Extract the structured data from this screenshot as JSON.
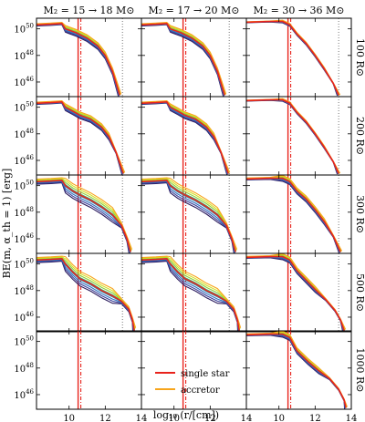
{
  "figure": {
    "ylabel": "BE(m, α_th = 1) [erg]",
    "xlabel": "log₁₀ (r/[cm])"
  },
  "chart_data": {
    "type": "line",
    "layout": {
      "rows": 5,
      "cols": 3
    },
    "column_titles": [
      "M₂ = 15 → 18 M⊙",
      "M₂ = 17 → 20 M⊙",
      "M₂ = 30 → 36 M⊙"
    ],
    "row_labels": [
      "100 R⊙",
      "200 R⊙",
      "300 R⊙",
      "500 R⊙",
      "1000 R⊙"
    ],
    "x_axis": {
      "scale": "log10 r",
      "range": [
        8.2,
        14
      ],
      "ticks": [
        10,
        12,
        14
      ],
      "tick_labels": [
        "10",
        "12",
        "14"
      ]
    },
    "y_axis": {
      "scale": "log",
      "range_exponent": [
        44.9,
        50.8
      ],
      "ticks_exponent": [
        46,
        48,
        50
      ],
      "tick_labels": [
        "10^46",
        "10^48",
        "10^50"
      ]
    },
    "legend": {
      "location": "row 5, column 2",
      "entries": [
        {
          "label": "single star",
          "color": "#e8231c"
        },
        {
          "label": "accretor",
          "color": "#f7a51c"
        }
      ]
    },
    "colors": {
      "single_star": "#e8231c",
      "accretor": "#f7a51c",
      "vertical_lines": "#e8231c",
      "ensemble_palette": [
        "#2b1b5e",
        "#3b3f9a",
        "#2f6fbf",
        "#2a9ab5",
        "#3dba82",
        "#8fcf3c",
        "#d7e021",
        "#f7a51c"
      ]
    },
    "annotations": {
      "solid_vline_x": 10.5,
      "dash_dot_vline_x": 10.65,
      "dotted_vline_x_by_column": [
        12.95,
        13.05,
        13.3
      ]
    },
    "panels": [
      {
        "row": 0,
        "col": 0,
        "series": [
          {
            "name": "single star",
            "x": [
              8.2,
              9.0,
              9.6,
              9.8,
              10.0,
              10.4,
              11.0,
              11.6,
              12.0,
              12.4,
              12.8
            ],
            "y": [
              50.3,
              50.35,
              50.4,
              50.0,
              49.9,
              49.7,
              49.3,
              48.7,
              48.0,
              46.8,
              45.0
            ]
          }
        ]
      },
      {
        "row": 0,
        "col": 1,
        "series": [
          {
            "name": "single star",
            "x": [
              8.2,
              9.0,
              9.6,
              9.8,
              10.0,
              10.4,
              11.0,
              11.6,
              12.0,
              12.4,
              12.8
            ],
            "y": [
              50.3,
              50.35,
              50.4,
              50.0,
              49.9,
              49.7,
              49.3,
              48.7,
              48.0,
              46.8,
              45.0
            ]
          }
        ]
      },
      {
        "row": 0,
        "col": 2,
        "series": [
          {
            "name": "single star",
            "x": [
              8.2,
              9.5,
              10.2,
              10.6,
              11.0,
              11.5,
              12.0,
              12.5,
              13.0,
              13.3
            ],
            "y": [
              50.5,
              50.55,
              50.55,
              50.3,
              49.6,
              48.9,
              48.0,
              47.0,
              45.9,
              45.0
            ]
          }
        ]
      },
      {
        "row": 1,
        "col": 0,
        "series": [
          {
            "name": "single star",
            "x": [
              8.2,
              9.0,
              9.6,
              9.8,
              10.2,
              10.6,
              11.2,
              11.8,
              12.2,
              12.6,
              13.0
            ],
            "y": [
              50.3,
              50.35,
              50.4,
              50.0,
              49.7,
              49.4,
              49.1,
              48.5,
              47.8,
              46.6,
              45.0
            ]
          }
        ]
      },
      {
        "row": 1,
        "col": 1,
        "series": [
          {
            "name": "single star",
            "x": [
              8.2,
              9.0,
              9.6,
              9.8,
              10.2,
              10.6,
              11.2,
              11.8,
              12.2,
              12.6,
              13.0
            ],
            "y": [
              50.3,
              50.35,
              50.4,
              50.0,
              49.7,
              49.4,
              49.1,
              48.5,
              47.8,
              46.6,
              45.0
            ]
          }
        ]
      },
      {
        "row": 1,
        "col": 2,
        "series": [
          {
            "name": "single star",
            "x": [
              8.2,
              9.5,
              10.2,
              10.6,
              11.0,
              11.5,
              12.0,
              12.5,
              13.0,
              13.3
            ],
            "y": [
              50.5,
              50.55,
              50.55,
              50.3,
              49.6,
              48.9,
              48.0,
              47.0,
              45.9,
              45.0
            ]
          }
        ]
      },
      {
        "row": 2,
        "col": 0,
        "series": [
          {
            "name": "single star",
            "x": [
              8.2,
              9.0,
              9.6,
              9.8,
              10.2,
              10.6,
              11.2,
              11.8,
              12.4,
              12.9,
              13.2,
              13.4
            ],
            "y": [
              50.3,
              50.35,
              50.4,
              50.0,
              49.6,
              49.3,
              48.9,
              48.4,
              47.8,
              47.0,
              46.0,
              45.0
            ]
          }
        ]
      },
      {
        "row": 2,
        "col": 1,
        "series": [
          {
            "name": "single star",
            "x": [
              8.2,
              9.0,
              9.6,
              9.8,
              10.2,
              10.6,
              11.2,
              11.8,
              12.4,
              12.9,
              13.2,
              13.4
            ],
            "y": [
              50.3,
              50.35,
              50.4,
              50.0,
              49.6,
              49.3,
              48.9,
              48.4,
              47.8,
              47.0,
              46.0,
              45.0
            ]
          }
        ]
      },
      {
        "row": 2,
        "col": 2,
        "series": [
          {
            "name": "single star",
            "x": [
              8.2,
              9.5,
              10.2,
              10.6,
              11.0,
              11.5,
              12.0,
              12.5,
              13.0,
              13.4
            ],
            "y": [
              50.5,
              50.55,
              50.55,
              50.3,
              49.6,
              49.0,
              48.2,
              47.3,
              46.2,
              45.0
            ]
          }
        ]
      },
      {
        "row": 3,
        "col": 0,
        "series": [
          {
            "name": "single star",
            "x": [
              8.2,
              9.0,
              9.6,
              9.8,
              10.2,
              10.6,
              11.2,
              11.8,
              12.4,
              12.9,
              13.3,
              13.5,
              13.6
            ],
            "y": [
              50.3,
              50.35,
              50.4,
              50.0,
              49.4,
              48.9,
              48.5,
              48.0,
              47.6,
              47.2,
              46.6,
              45.8,
              45.0
            ]
          }
        ]
      },
      {
        "row": 3,
        "col": 1,
        "series": [
          {
            "name": "single star",
            "x": [
              8.2,
              9.0,
              9.6,
              9.8,
              10.2,
              10.6,
              11.2,
              11.8,
              12.4,
              12.9,
              13.3,
              13.5,
              13.6
            ],
            "y": [
              50.3,
              50.35,
              50.4,
              50.0,
              49.4,
              48.9,
              48.5,
              48.0,
              47.6,
              47.2,
              46.6,
              45.8,
              45.0
            ]
          }
        ]
      },
      {
        "row": 3,
        "col": 2,
        "series": [
          {
            "name": "single star",
            "x": [
              8.2,
              9.5,
              10.2,
              10.6,
              11.0,
              11.5,
              12.0,
              12.6,
              13.1,
              13.4,
              13.6
            ],
            "y": [
              50.5,
              50.55,
              50.55,
              50.3,
              49.5,
              48.8,
              48.1,
              47.3,
              46.5,
              45.8,
              45.0
            ]
          }
        ]
      },
      {
        "row": 4,
        "col": 2,
        "series": [
          {
            "name": "single star",
            "x": [
              8.2,
              9.5,
              10.2,
              10.6,
              11.0,
              11.6,
              12.2,
              12.8,
              13.3,
              13.6,
              13.7
            ],
            "y": [
              50.5,
              50.55,
              50.55,
              50.3,
              49.3,
              48.5,
              47.8,
              47.2,
              46.4,
              45.6,
              45.0
            ]
          }
        ]
      }
    ]
  }
}
